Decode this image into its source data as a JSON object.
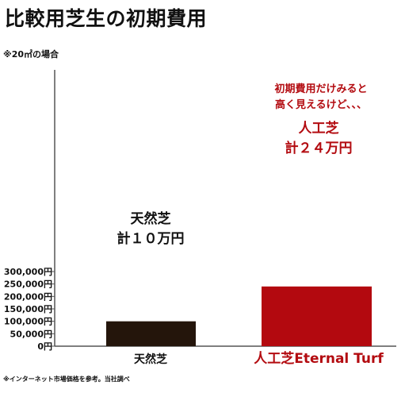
{
  "title": "比較用芝生の初期費用",
  "note": "※20㎡の場合",
  "callout": [
    "初期費用だけみると",
    "高く見えるけど、、、"
  ],
  "footer_note": "※インターネット市場価格を参考。当社調べ",
  "colors": {
    "natural_bar": "#24150b",
    "artificial_bar": "#b3090f",
    "accent_text": "#b30b10",
    "axis": "#555555"
  },
  "chart_data": {
    "type": "bar",
    "categories": [
      "天然芝",
      "人工芝Eternal Turf"
    ],
    "values": [
      100000,
      240000
    ],
    "ylim": [
      0,
      300000
    ],
    "ticks": [
      0,
      50000,
      100000,
      150000,
      200000,
      250000,
      300000
    ],
    "tick_labels": [
      "0円",
      "50,000円",
      "100,000円",
      "150,000円",
      "200,000円",
      "250,000円",
      "300,000円"
    ],
    "bar_labels": [
      {
        "name": "天然芝",
        "total": "計１０万円"
      },
      {
        "name": "人工芝",
        "total": "計２４万円"
      }
    ]
  }
}
